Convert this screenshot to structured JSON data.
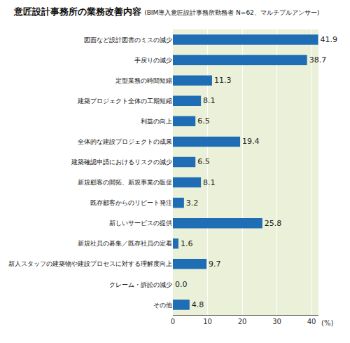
{
  "chart_data": {
    "type": "bar",
    "orientation": "horizontal",
    "title": "意匠設計事務所の業務改善内容",
    "subtitle": "(BIM導入意匠設計事務所勤務者 N=62、マルチプルアンサー)",
    "xlabel": "(%)",
    "categories": [
      "図面など設計図書のミスの減少",
      "手戻りの減少",
      "定型業務の時間短縮",
      "建築プロジェクト全体の工期短縮",
      "利益の向上",
      "全体的な建設プロジェクトの成果",
      "建築確認申請におけるリスクの減少",
      "新規顧客の開拓、新規事業の販促",
      "既存顧客からのリピート発注",
      "新しいサービスの提供",
      "新規社員の募集／既存社員の定着",
      "新人スタッフの建築物や建設プロセスに対する理解度向上",
      "クレーム・訴訟の減少",
      "その他"
    ],
    "values": [
      41.9,
      38.7,
      11.3,
      8.1,
      6.5,
      19.4,
      6.5,
      8.1,
      3.2,
      25.8,
      1.6,
      9.7,
      0.0,
      4.8
    ],
    "value_labels": [
      "41.9",
      "38.7",
      "11.3",
      "8.1",
      "6.5",
      "19.4",
      "6.5",
      "8.1",
      "3.2",
      "25.8",
      "1.6",
      "9.7",
      "0.0",
      "4.8"
    ],
    "data_labels": true,
    "color": "#1f6db5",
    "xlim": [
      0,
      42
    ],
    "xticks": [
      0,
      10,
      20,
      30,
      40
    ],
    "grid": true
  }
}
